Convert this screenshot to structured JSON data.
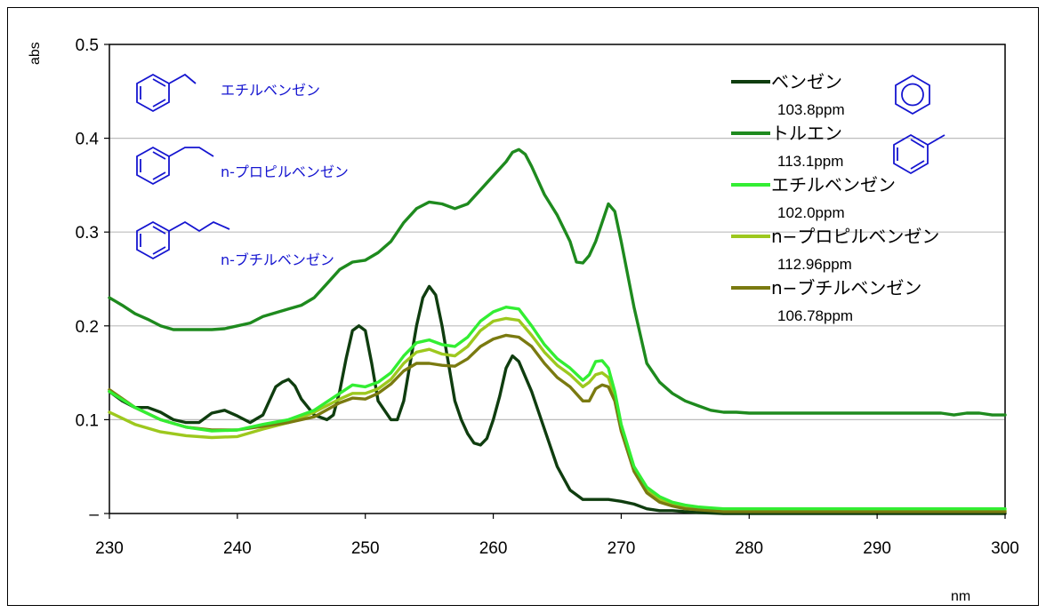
{
  "chart_data": {
    "type": "line",
    "xlabel": "nm",
    "ylabel": "abs",
    "xlim": [
      230,
      300
    ],
    "ylim": [
      0,
      0.5
    ],
    "grid": true,
    "legend_position": "top-right",
    "x_ticks": [
      "230",
      "240",
      "250",
      "260",
      "270",
      "280",
      "290",
      "300"
    ],
    "y_ticks": [
      "–",
      "0.1",
      "0.2",
      "0.3",
      "0.4",
      "0.5"
    ],
    "series": [
      {
        "name": "ベンゼン",
        "ppm": "103.8ppm",
        "color": "#0f3d0f",
        "x": [
          230,
          231,
          232,
          233,
          234,
          235,
          236,
          237,
          238,
          239,
          240,
          241,
          242,
          243,
          243.5,
          244,
          244.5,
          245,
          246,
          247,
          247.5,
          248,
          248.5,
          249,
          249.5,
          250,
          250.5,
          251,
          252,
          252.5,
          253,
          253.5,
          254,
          254.5,
          255,
          255.5,
          256,
          256.5,
          257,
          257.5,
          258,
          258.5,
          259,
          259.5,
          260,
          260.5,
          261,
          261.5,
          262,
          263,
          264,
          265,
          266,
          267,
          268,
          269,
          270,
          271,
          272,
          273,
          274,
          275,
          276,
          278,
          280,
          285,
          290,
          295,
          300
        ],
        "y": [
          0.13,
          0.12,
          0.113,
          0.113,
          0.108,
          0.1,
          0.097,
          0.097,
          0.107,
          0.11,
          0.104,
          0.097,
          0.105,
          0.135,
          0.14,
          0.143,
          0.136,
          0.122,
          0.105,
          0.1,
          0.105,
          0.13,
          0.165,
          0.195,
          0.2,
          0.195,
          0.16,
          0.12,
          0.1,
          0.1,
          0.12,
          0.16,
          0.2,
          0.23,
          0.242,
          0.233,
          0.2,
          0.16,
          0.12,
          0.1,
          0.085,
          0.075,
          0.073,
          0.08,
          0.1,
          0.125,
          0.155,
          0.168,
          0.162,
          0.13,
          0.09,
          0.05,
          0.025,
          0.015,
          0.015,
          0.015,
          0.013,
          0.01,
          0.005,
          0.003,
          0.003,
          0.002,
          0.001,
          0.0,
          0.0,
          0.0,
          0.0,
          0.0,
          0.0
        ]
      },
      {
        "name": "トルエン",
        "ppm": "113.1ppm",
        "color": "#1e8a1e",
        "x": [
          230,
          231,
          232,
          233,
          234,
          235,
          236,
          237,
          238,
          239,
          240,
          241,
          242,
          243,
          244,
          245,
          246,
          247,
          248,
          249,
          250,
          251,
          252,
          253,
          254,
          255,
          256,
          257,
          258,
          259,
          260,
          261,
          261.5,
          262,
          262.5,
          263,
          264,
          265,
          266,
          266.5,
          267,
          267.5,
          268,
          268.5,
          269,
          269.5,
          270,
          271,
          272,
          273,
          274,
          275,
          276,
          277,
          278,
          279,
          280,
          285,
          290,
          295,
          296,
          297,
          298,
          299,
          300
        ],
        "y": [
          0.23,
          0.222,
          0.213,
          0.207,
          0.2,
          0.196,
          0.196,
          0.196,
          0.196,
          0.197,
          0.2,
          0.203,
          0.21,
          0.214,
          0.218,
          0.222,
          0.23,
          0.245,
          0.26,
          0.268,
          0.27,
          0.278,
          0.29,
          0.31,
          0.325,
          0.332,
          0.33,
          0.325,
          0.33,
          0.345,
          0.36,
          0.375,
          0.385,
          0.388,
          0.383,
          0.37,
          0.34,
          0.318,
          0.29,
          0.268,
          0.267,
          0.275,
          0.29,
          0.31,
          0.33,
          0.322,
          0.29,
          0.22,
          0.16,
          0.14,
          0.128,
          0.12,
          0.115,
          0.11,
          0.108,
          0.108,
          0.107,
          0.107,
          0.107,
          0.107,
          0.105,
          0.107,
          0.107,
          0.105,
          0.105
        ]
      },
      {
        "name": "エチルベンゼン",
        "ppm": "102.0ppm",
        "color": "#33ee33",
        "x": [
          230,
          232,
          234,
          236,
          238,
          240,
          242,
          244,
          246,
          248,
          249,
          250,
          251,
          252,
          253,
          254,
          255,
          256,
          257,
          258,
          259,
          260,
          261,
          262,
          263,
          264,
          265,
          266,
          267,
          267.5,
          268,
          268.5,
          269,
          269.5,
          270,
          271,
          272,
          273,
          274,
          275,
          276,
          277,
          278,
          280,
          285,
          290,
          295,
          300
        ],
        "y": [
          0.13,
          0.113,
          0.1,
          0.092,
          0.088,
          0.089,
          0.095,
          0.1,
          0.11,
          0.128,
          0.137,
          0.135,
          0.14,
          0.15,
          0.168,
          0.182,
          0.185,
          0.18,
          0.178,
          0.188,
          0.205,
          0.215,
          0.22,
          0.218,
          0.2,
          0.18,
          0.165,
          0.155,
          0.142,
          0.148,
          0.162,
          0.163,
          0.155,
          0.13,
          0.095,
          0.05,
          0.028,
          0.018,
          0.012,
          0.009,
          0.007,
          0.006,
          0.005,
          0.005,
          0.005,
          0.005,
          0.005,
          0.005
        ]
      },
      {
        "name": "n−プロピルベンゼン",
        "ppm": "112.96ppm",
        "color": "#9dc81e",
        "x": [
          230,
          232,
          234,
          236,
          238,
          240,
          242,
          244,
          246,
          248,
          249,
          250,
          251,
          252,
          253,
          254,
          255,
          256,
          257,
          258,
          259,
          260,
          261,
          262,
          263,
          264,
          265,
          266,
          267,
          267.5,
          268,
          268.5,
          269,
          269.5,
          270,
          271,
          272,
          273,
          274,
          275,
          276,
          277,
          278,
          280,
          285,
          290,
          295,
          300
        ],
        "y": [
          0.108,
          0.095,
          0.087,
          0.083,
          0.081,
          0.082,
          0.09,
          0.097,
          0.108,
          0.122,
          0.128,
          0.128,
          0.133,
          0.143,
          0.16,
          0.172,
          0.175,
          0.17,
          0.168,
          0.178,
          0.195,
          0.205,
          0.208,
          0.206,
          0.19,
          0.172,
          0.158,
          0.148,
          0.135,
          0.14,
          0.148,
          0.15,
          0.145,
          0.125,
          0.09,
          0.048,
          0.025,
          0.015,
          0.01,
          0.007,
          0.005,
          0.004,
          0.003,
          0.003,
          0.003,
          0.003,
          0.003,
          0.003
        ]
      },
      {
        "name": "n−ブチルベンゼン",
        "ppm": "106.78ppm",
        "color": "#7a7a10",
        "x": [
          230,
          232,
          234,
          236,
          238,
          240,
          242,
          244,
          246,
          248,
          249,
          250,
          251,
          252,
          253,
          254,
          255,
          256,
          257,
          258,
          259,
          260,
          261,
          262,
          263,
          264,
          265,
          266,
          267,
          267.5,
          268,
          268.5,
          269,
          269.5,
          270,
          271,
          272,
          273,
          274,
          275,
          276,
          277,
          278,
          280,
          285,
          290,
          295,
          300
        ],
        "y": [
          0.132,
          0.113,
          0.1,
          0.092,
          0.089,
          0.089,
          0.093,
          0.097,
          0.103,
          0.118,
          0.123,
          0.122,
          0.128,
          0.138,
          0.152,
          0.16,
          0.16,
          0.158,
          0.157,
          0.165,
          0.178,
          0.186,
          0.19,
          0.188,
          0.178,
          0.16,
          0.145,
          0.135,
          0.12,
          0.12,
          0.133,
          0.137,
          0.135,
          0.12,
          0.088,
          0.045,
          0.022,
          0.012,
          0.008,
          0.005,
          0.004,
          0.003,
          0.002,
          0.002,
          0.002,
          0.002,
          0.002,
          0.002
        ]
      }
    ],
    "structure_labels": [
      "エチルベンゼン",
      "n-プロピルベンゼン",
      "n-ブチルベンゼン"
    ]
  }
}
